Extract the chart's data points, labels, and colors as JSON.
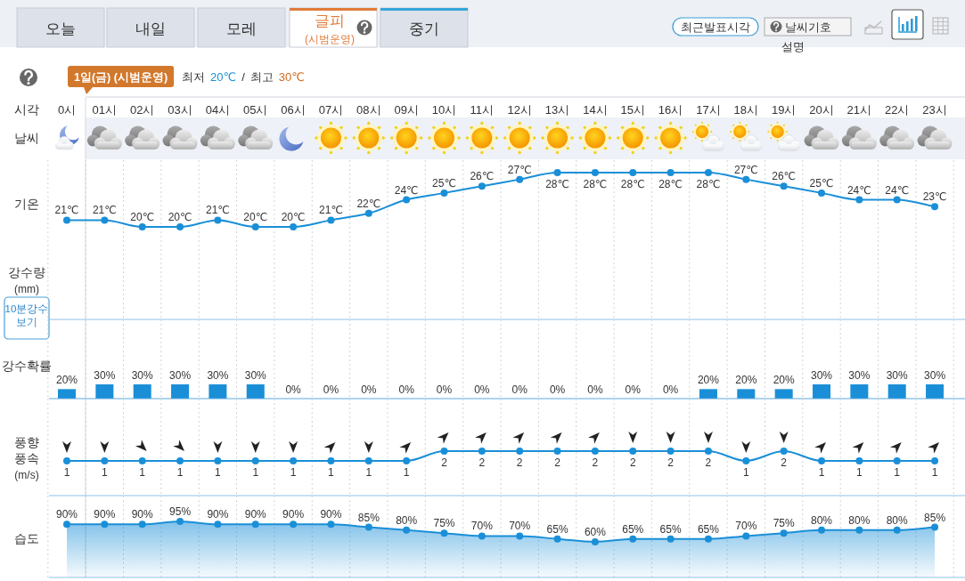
{
  "chart_data": [
    {
      "type": "other",
      "title": "1일(금) (시범운영)",
      "subtitle": "최저 20℃ / 최고 30℃",
      "annotations": [
        "오늘",
        "내일",
        "모레",
        "글피",
        "(시범운영)",
        "중기",
        "최근발표시각",
        "날씨기호 설명",
        "날씨",
        "강수량 (mm)",
        "10분강수 보기"
      ]
    },
    {
      "type": "line",
      "xlabel": "시각",
      "ylabel": "기온",
      "categories": [
        "0시",
        "01시",
        "02시",
        "03시",
        "04시",
        "05시",
        "06시",
        "07시",
        "08시",
        "09시",
        "10시",
        "11시",
        "12시",
        "13시",
        "14시",
        "15시",
        "16시",
        "17시",
        "18시",
        "19시",
        "20시",
        "21시",
        "22시",
        "23시"
      ],
      "values": [
        21,
        21,
        20,
        20,
        21,
        20,
        20,
        21,
        22,
        24,
        25,
        26,
        27,
        28,
        28,
        28,
        28,
        28,
        27,
        26,
        25,
        24,
        24,
        23
      ],
      "value_labels": [
        "21℃",
        "21℃",
        "20℃",
        "20℃",
        "21℃",
        "20℃",
        "20℃",
        "21℃",
        "22℃",
        "24℃",
        "25℃",
        "26℃",
        "27℃",
        "28℃",
        "28℃",
        "28℃",
        "28℃",
        "28℃",
        "27℃",
        "26℃",
        "25℃",
        "24℃",
        "24℃",
        "23℃"
      ],
      "color": "#1a8fd8",
      "marker": "circle",
      "grid": "x",
      "tick_labels": "x"
    },
    {
      "type": "bar",
      "ylabel": "강수확률",
      "categories": [
        "0시",
        "01시",
        "02시",
        "03시",
        "04시",
        "05시",
        "06시",
        "07시",
        "08시",
        "09시",
        "10시",
        "11시",
        "12시",
        "13시",
        "14시",
        "15시",
        "16시",
        "17시",
        "18시",
        "19시",
        "20시",
        "21시",
        "22시",
        "23시"
      ],
      "values": [
        20,
        30,
        30,
        30,
        30,
        30,
        0,
        0,
        0,
        0,
        0,
        0,
        0,
        0,
        0,
        0,
        0,
        20,
        20,
        20,
        30,
        30,
        30,
        30
      ],
      "value_labels": [
        "20%",
        "30%",
        "30%",
        "30%",
        "30%",
        "30%",
        "0%",
        "0%",
        "0%",
        "0%",
        "0%",
        "0%",
        "0%",
        "0%",
        "0%",
        "0%",
        "0%",
        "20%",
        "20%",
        "20%",
        "30%",
        "30%",
        "30%",
        "30%"
      ],
      "color": "#1a8fd8",
      "grid": "x",
      "tick_labels": false
    },
    {
      "type": "line",
      "ylabel": "풍향 풍속 (m/s)",
      "categories": [
        "0시",
        "01시",
        "02시",
        "03시",
        "04시",
        "05시",
        "06시",
        "07시",
        "08시",
        "09시",
        "10시",
        "11시",
        "12시",
        "13시",
        "14시",
        "15시",
        "16시",
        "17시",
        "18시",
        "19시",
        "20시",
        "21시",
        "22시",
        "23시"
      ],
      "values": [
        1,
        1,
        1,
        1,
        1,
        1,
        1,
        1,
        1,
        1,
        2,
        2,
        2,
        2,
        2,
        2,
        2,
        2,
        1,
        2,
        1,
        1,
        1,
        1
      ],
      "data_labels": true,
      "color": "#1a8fd8",
      "marker": "circle",
      "grid": "x",
      "tick_labels": false
    },
    {
      "type": "area",
      "ylabel": "습도",
      "categories": [
        "0시",
        "01시",
        "02시",
        "03시",
        "04시",
        "05시",
        "06시",
        "07시",
        "08시",
        "09시",
        "10시",
        "11시",
        "12시",
        "13시",
        "14시",
        "15시",
        "16시",
        "17시",
        "18시",
        "19시",
        "20시",
        "21시",
        "22시",
        "23시"
      ],
      "values": [
        90,
        90,
        90,
        95,
        90,
        90,
        90,
        90,
        85,
        80,
        75,
        70,
        70,
        65,
        60,
        65,
        65,
        65,
        70,
        75,
        80,
        80,
        80,
        85
      ],
      "value_labels": [
        "90%",
        "90%",
        "90%",
        "95%",
        "90%",
        "90%",
        "90%",
        "90%",
        "85%",
        "80%",
        "75%",
        "70%",
        "70%",
        "65%",
        "60%",
        "65%",
        "65%",
        "65%",
        "70%",
        "75%",
        "80%",
        "80%",
        "80%",
        "85%"
      ],
      "color": "#1a8fd8",
      "marker": "circle",
      "grid": "x",
      "tick_labels": false
    }
  ]
}
